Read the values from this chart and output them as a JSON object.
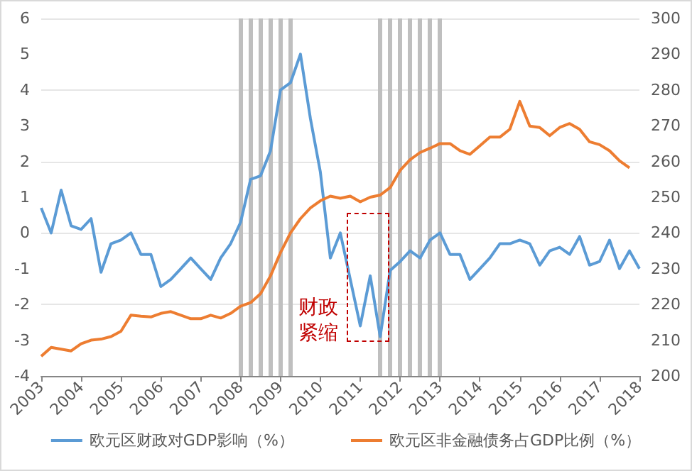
{
  "chart_data": {
    "type": "line",
    "x": [
      2003,
      2003.25,
      2003.5,
      2003.75,
      2004,
      2004.25,
      2004.5,
      2004.75,
      2005,
      2005.25,
      2005.5,
      2005.75,
      2006,
      2006.25,
      2006.5,
      2006.75,
      2007,
      2007.25,
      2007.5,
      2007.75,
      2008,
      2008.25,
      2008.5,
      2008.75,
      2009,
      2009.25,
      2009.5,
      2009.75,
      2010,
      2010.25,
      2010.5,
      2010.75,
      2011,
      2011.25,
      2011.5,
      2011.75,
      2012,
      2012.25,
      2012.5,
      2012.75,
      2013,
      2013.25,
      2013.5,
      2013.75,
      2014,
      2014.25,
      2014.5,
      2014.75,
      2015,
      2015.25,
      2015.5,
      2015.75,
      2016,
      2016.25,
      2016.5,
      2016.75,
      2017,
      2017.25,
      2017.5,
      2017.75,
      2018
    ],
    "series": [
      {
        "name": "欧元区财政对GDP影响（%）",
        "color": "#5b9bd5",
        "values": [
          0.7,
          0.0,
          1.2,
          0.2,
          0.1,
          0.4,
          -1.1,
          -0.3,
          -0.2,
          0.0,
          -0.6,
          -0.6,
          -1.5,
          -1.3,
          -1.0,
          -0.7,
          -1.0,
          -1.3,
          -0.7,
          -0.3,
          0.3,
          1.5,
          1.6,
          2.3,
          4.0,
          4.2,
          5.0,
          3.2,
          1.7,
          -0.7,
          0.0,
          -1.3,
          -2.6,
          -1.2,
          -2.9,
          -1.05,
          -0.8,
          -0.5,
          -0.7,
          -0.2,
          0.0,
          -0.6,
          -0.6,
          -1.3,
          -1.0,
          -0.7,
          -0.3,
          -0.3,
          -0.2,
          -0.3,
          -0.9,
          -0.5,
          -0.4,
          -0.6,
          -0.1,
          -0.9,
          -0.8,
          -0.2,
          -1.0,
          -0.5,
          -1.0
        ]
      },
      {
        "name": "欧元区非金融债务占GDP比例（%）",
        "color": "#ed7d31",
        "axis": "y2",
        "values": [
          205.5,
          208,
          207.5,
          207,
          209,
          210,
          210.3,
          211,
          212.5,
          217,
          216.7,
          216.5,
          217.5,
          218,
          217,
          216,
          216,
          217,
          216.2,
          217.5,
          219.5,
          220.5,
          223,
          228,
          234.5,
          240,
          244,
          247,
          249,
          250.3,
          249.7,
          250.3,
          248.7,
          250,
          250.6,
          252.7,
          257.5,
          260.5,
          262.5,
          263.7,
          265,
          265,
          263,
          262,
          264.4,
          266.8,
          266.8,
          269,
          276.8,
          269.9,
          269.5,
          267.2,
          269.5,
          270.6,
          269,
          265.5,
          264.7,
          263,
          260.2,
          258.2,
          null
        ]
      }
    ],
    "xlim": [
      2003,
      2018
    ],
    "xticks": [
      2003,
      2004,
      2005,
      2006,
      2007,
      2008,
      2009,
      2010,
      2011,
      2012,
      2013,
      2014,
      2015,
      2016,
      2017,
      2018
    ],
    "ylim": [
      -4,
      6
    ],
    "yticks": [
      -4,
      -3,
      -2,
      -1,
      0,
      1,
      2,
      3,
      4,
      5,
      6
    ],
    "y2lim": [
      200,
      300
    ],
    "y2ticks": [
      200,
      210,
      220,
      230,
      240,
      250,
      260,
      270,
      280,
      290,
      300
    ],
    "ref_lines": [
      {
        "axis": "x",
        "value": 2008,
        "color": "#bfbfbf"
      },
      {
        "axis": "x",
        "value": 2008.25,
        "color": "#bfbfbf"
      },
      {
        "axis": "x",
        "value": 2008.5,
        "color": "#bfbfbf"
      },
      {
        "axis": "x",
        "value": 2008.75,
        "color": "#bfbfbf"
      },
      {
        "axis": "x",
        "value": 2009,
        "color": "#bfbfbf"
      },
      {
        "axis": "x",
        "value": 2009.25,
        "color": "#bfbfbf"
      },
      {
        "axis": "x",
        "value": 2011.5,
        "color": "#bfbfbf"
      },
      {
        "axis": "x",
        "value": 2011.75,
        "color": "#bfbfbf"
      },
      {
        "axis": "x",
        "value": 2012,
        "color": "#bfbfbf"
      },
      {
        "axis": "x",
        "value": 2012.25,
        "color": "#bfbfbf"
      },
      {
        "axis": "x",
        "value": 2012.5,
        "color": "#bfbfbf"
      },
      {
        "axis": "x",
        "value": 2012.75,
        "color": "#bfbfbf"
      },
      {
        "axis": "x",
        "value": 2013,
        "color": "#bfbfbf"
      }
    ],
    "annotations": [
      "财政紧缩"
    ],
    "grid": "y",
    "legend": "bottom",
    "marker": "none",
    "line_style": "solid"
  }
}
